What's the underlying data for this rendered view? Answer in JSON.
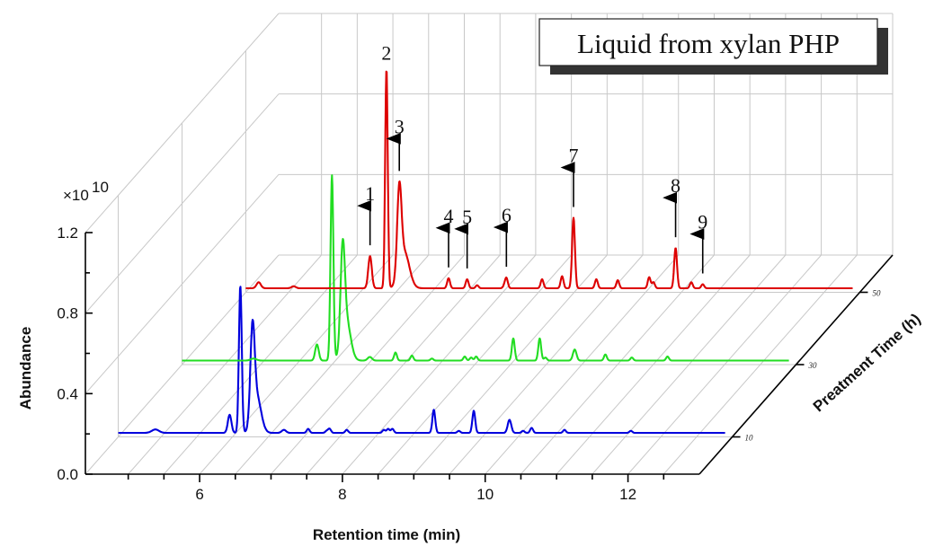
{
  "chart_data": {
    "type": "line",
    "title": "Liquid from xylan PHP",
    "xlabel": "Retention time (min)",
    "ylabel": "Abundance",
    "zlabel": "Preatment Time (h)",
    "scale_note": "×10",
    "scale_exponent": "10",
    "xlim": [
      4.4,
      13.0
    ],
    "ylim": [
      0.0,
      1.2
    ],
    "x_ticks": [
      6,
      8,
      10,
      12
    ],
    "x_tick_labels": [
      "6",
      "8",
      "10",
      "12"
    ],
    "y_ticks": [
      0.0,
      0.4,
      0.8,
      1.2
    ],
    "y_tick_labels": [
      "0.0",
      "0.4",
      "0.8",
      "1.2"
    ],
    "series": [
      {
        "name": "10",
        "color": "#0000dd",
        "x_start": 4.4,
        "x_end": 12.9,
        "baseline": 0.02,
        "peaks": [
          [
            4.92,
            0.017,
            0.05
          ],
          [
            5.96,
            0.09,
            0.025
          ],
          [
            6.11,
            0.73,
            0.02
          ],
          [
            6.28,
            0.45,
            0.03
          ],
          [
            6.34,
            0.18,
            0.06
          ],
          [
            6.72,
            0.015,
            0.03
          ],
          [
            7.06,
            0.02,
            0.02
          ],
          [
            7.32,
            0.01,
            0.02
          ],
          [
            7.36,
            0.02,
            0.02
          ],
          [
            7.6,
            0.015,
            0.02
          ],
          [
            8.12,
            0.015,
            0.02
          ],
          [
            8.18,
            0.02,
            0.02
          ],
          [
            8.24,
            0.02,
            0.02
          ],
          [
            8.82,
            0.115,
            0.02
          ],
          [
            9.17,
            0.01,
            0.02
          ],
          [
            9.38,
            0.11,
            0.02
          ],
          [
            9.88,
            0.065,
            0.025
          ],
          [
            10.07,
            0.01,
            0.02
          ],
          [
            10.19,
            0.025,
            0.02
          ],
          [
            10.65,
            0.015,
            0.02
          ],
          [
            11.58,
            0.01,
            0.02
          ]
        ]
      },
      {
        "name": "30",
        "color": "#22dd22",
        "x_start": 4.4,
        "x_end": 12.9,
        "baseline": 0.02,
        "peaks": [
          [
            5.4,
            0.01,
            0.04
          ],
          [
            6.29,
            0.08,
            0.025
          ],
          [
            6.5,
            0.92,
            0.02
          ],
          [
            6.65,
            0.46,
            0.03
          ],
          [
            6.7,
            0.2,
            0.06
          ],
          [
            7.03,
            0.018,
            0.03
          ],
          [
            7.39,
            0.04,
            0.02
          ],
          [
            7.62,
            0.025,
            0.02
          ],
          [
            7.9,
            0.01,
            0.02
          ],
          [
            8.36,
            0.02,
            0.02
          ],
          [
            8.45,
            0.015,
            0.02
          ],
          [
            8.52,
            0.02,
            0.02
          ],
          [
            9.04,
            0.11,
            0.02
          ],
          [
            9.41,
            0.11,
            0.02
          ],
          [
            9.49,
            0.015,
            0.02
          ],
          [
            9.9,
            0.055,
            0.025
          ],
          [
            10.33,
            0.03,
            0.02
          ],
          [
            10.7,
            0.015,
            0.02
          ],
          [
            11.2,
            0.02,
            0.02
          ]
        ]
      },
      {
        "name": "50",
        "color": "#dd0000",
        "x_start": 4.4,
        "x_end": 12.9,
        "baseline": 0.02,
        "peaks": [
          [
            4.58,
            0.03,
            0.03
          ],
          [
            5.07,
            0.01,
            0.03
          ],
          [
            6.14,
            0.16,
            0.025
          ],
          [
            6.37,
            1.09,
            0.018
          ],
          [
            6.55,
            0.42,
            0.03
          ],
          [
            6.62,
            0.18,
            0.07
          ],
          [
            7.24,
            0.05,
            0.02
          ],
          [
            7.5,
            0.045,
            0.02
          ],
          [
            7.64,
            0.015,
            0.02
          ],
          [
            8.02,
            0.01,
            0.02
          ],
          [
            8.05,
            0.05,
            0.02
          ],
          [
            8.55,
            0.045,
            0.02
          ],
          [
            8.83,
            0.06,
            0.02
          ],
          [
            8.99,
            0.35,
            0.02
          ],
          [
            9.31,
            0.045,
            0.02
          ],
          [
            9.61,
            0.04,
            0.02
          ],
          [
            10.05,
            0.055,
            0.02
          ],
          [
            10.11,
            0.03,
            0.02
          ],
          [
            10.42,
            0.2,
            0.02
          ],
          [
            10.64,
            0.03,
            0.02
          ],
          [
            10.8,
            0.02,
            0.02
          ]
        ]
      }
    ],
    "peak_labels": [
      {
        "label": "1",
        "x": 6.14,
        "series": "50",
        "arrow": true
      },
      {
        "label": "2",
        "x": 6.37,
        "series": "50",
        "arrow": false
      },
      {
        "label": "3",
        "x": 6.55,
        "series": "50",
        "arrow": true
      },
      {
        "label": "4",
        "x": 7.24,
        "series": "50",
        "arrow": true
      },
      {
        "label": "5",
        "x": 7.5,
        "series": "50",
        "arrow": true
      },
      {
        "label": "6",
        "x": 8.05,
        "series": "50",
        "arrow": true
      },
      {
        "label": "7",
        "x": 8.99,
        "series": "50",
        "arrow": true
      },
      {
        "label": "8",
        "x": 10.42,
        "series": "50",
        "arrow": true
      },
      {
        "label": "9",
        "x": 10.8,
        "series": "50",
        "arrow": true
      }
    ]
  }
}
